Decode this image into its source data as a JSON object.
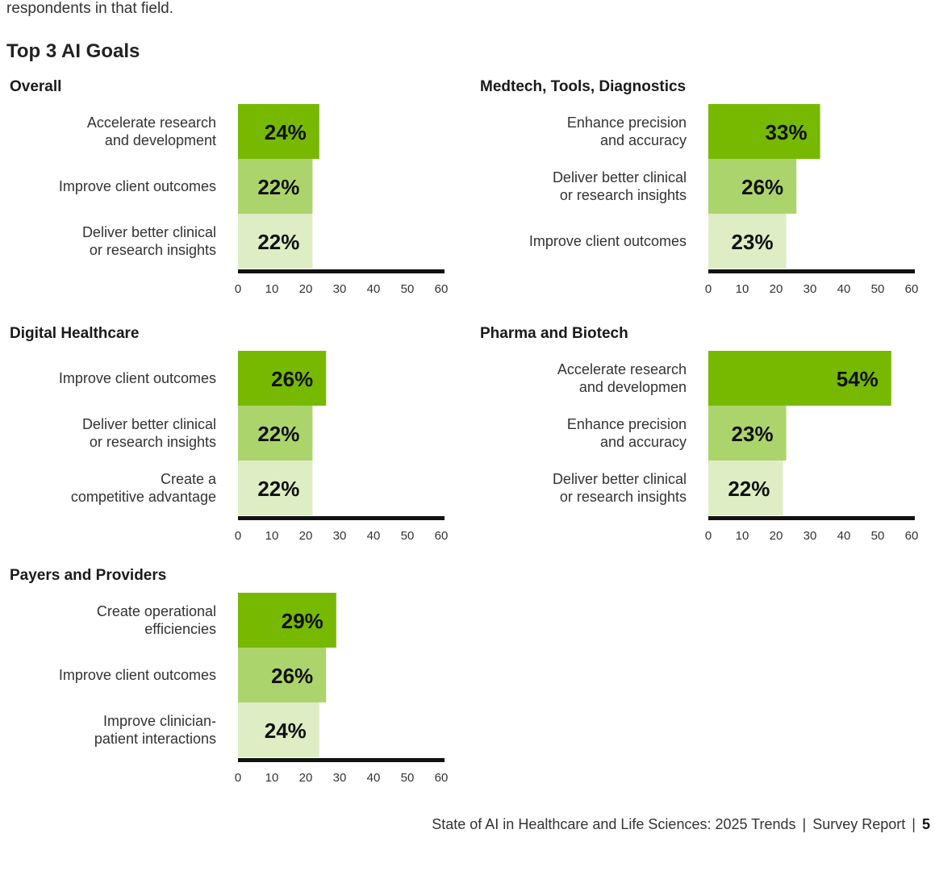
{
  "page": {
    "intro_text": "respondents in that field.",
    "section_title": "Top 3 AI Goals",
    "footer_title": "State of AI in Healthcare and Life Sciences: 2025 Trends",
    "footer_sep1": "|",
    "footer_report": "Survey Report",
    "footer_sep2": "|",
    "footer_page": "5"
  },
  "colors": {
    "bar1": "#76b900",
    "bar2": "#acd46c",
    "bar3": "#deedc4",
    "axis": "#111111"
  },
  "chart_data": [
    {
      "type": "bar",
      "orientation": "horizontal",
      "title": "Overall",
      "categories": [
        [
          "Accelerate research",
          "and development"
        ],
        [
          "Improve client outcomes"
        ],
        [
          "Deliver better clinical",
          "or research insights"
        ]
      ],
      "values": [
        24,
        22,
        22
      ],
      "labels": [
        "24%",
        "22%",
        "22%"
      ],
      "xlim": [
        0,
        60
      ],
      "xticks": [
        "0",
        "10",
        "20",
        "30",
        "40",
        "50",
        "60"
      ]
    },
    {
      "type": "bar",
      "orientation": "horizontal",
      "title": "Medtech, Tools, Diagnostics",
      "categories": [
        [
          "Enhance precision",
          "and accuracy"
        ],
        [
          "Deliver better clinical",
          "or research insights"
        ],
        [
          "Improve client outcomes"
        ]
      ],
      "values": [
        33,
        26,
        23
      ],
      "labels": [
        "33%",
        "26%",
        "23%"
      ],
      "xlim": [
        0,
        60
      ],
      "xticks": [
        "0",
        "10",
        "20",
        "30",
        "40",
        "50",
        "60"
      ]
    },
    {
      "type": "bar",
      "orientation": "horizontal",
      "title": "Digital Healthcare",
      "categories": [
        [
          "Improve client outcomes"
        ],
        [
          "Deliver better clinical",
          "or research insights"
        ],
        [
          "Create a",
          "competitive advantage"
        ]
      ],
      "values": [
        26,
        22,
        22
      ],
      "labels": [
        "26%",
        "22%",
        "22%"
      ],
      "xlim": [
        0,
        60
      ],
      "xticks": [
        "0",
        "10",
        "20",
        "30",
        "40",
        "50",
        "60"
      ]
    },
    {
      "type": "bar",
      "orientation": "horizontal",
      "title": "Pharma and Biotech",
      "categories": [
        [
          "Accelerate research",
          "and developmen"
        ],
        [
          "Enhance precision",
          "and accuracy"
        ],
        [
          "Deliver better clinical",
          "or research insights"
        ]
      ],
      "values": [
        54,
        23,
        22
      ],
      "labels": [
        "54%",
        "23%",
        "22%"
      ],
      "xlim": [
        0,
        60
      ],
      "xticks": [
        "0",
        "10",
        "20",
        "30",
        "40",
        "50",
        "60"
      ]
    },
    {
      "type": "bar",
      "orientation": "horizontal",
      "title": "Payers and Providers",
      "categories": [
        [
          "Create operational",
          "efficiencies"
        ],
        [
          "Improve client outcomes"
        ],
        [
          "Improve clinician-",
          "patient interactions"
        ]
      ],
      "values": [
        29,
        26,
        24
      ],
      "labels": [
        "29%",
        "26%",
        "24%"
      ],
      "xlim": [
        0,
        60
      ],
      "xticks": [
        "0",
        "10",
        "20",
        "30",
        "40",
        "50",
        "60"
      ]
    }
  ]
}
